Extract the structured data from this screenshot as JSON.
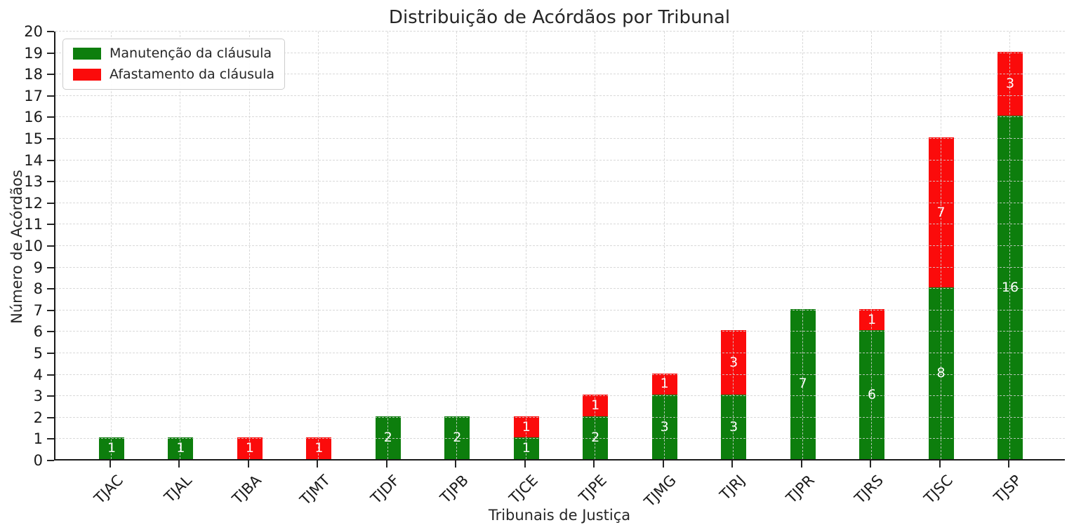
{
  "chart_data": {
    "type": "bar",
    "stacked": true,
    "title": "Distribuição de Acórdãos por Tribunal",
    "xlabel": "Tribunais de Justiça",
    "ylabel": "Número de Acórdãos",
    "categories": [
      "TJAC",
      "TJAL",
      "TJBA",
      "TJMT",
      "TJDF",
      "TJPB",
      "TJCE",
      "TJPE",
      "TJMG",
      "TJRJ",
      "TJPR",
      "TJRS",
      "TJSC",
      "TJSP"
    ],
    "series": [
      {
        "name": "Manutenção da cláusula",
        "color": "#0d7e0d",
        "values": [
          1,
          1,
          0,
          0,
          2,
          2,
          1,
          2,
          3,
          3,
          7,
          6,
          8,
          16
        ]
      },
      {
        "name": "Afastamento da cláusula",
        "color": "#fb0b0b",
        "values": [
          0,
          0,
          1,
          1,
          0,
          0,
          1,
          1,
          1,
          3,
          0,
          1,
          7,
          3
        ]
      }
    ],
    "totals": [
      1,
      1,
      1,
      1,
      2,
      2,
      2,
      3,
      4,
      6,
      7,
      7,
      15,
      19
    ],
    "ylim": [
      0,
      20
    ],
    "ytick_step": 1,
    "grid": true,
    "grid_style": "dashed",
    "legend_position": "upper left",
    "bar_label_color": "#ffffff",
    "axis_color": "#1a1a1a",
    "background_color": "#ffffff"
  }
}
